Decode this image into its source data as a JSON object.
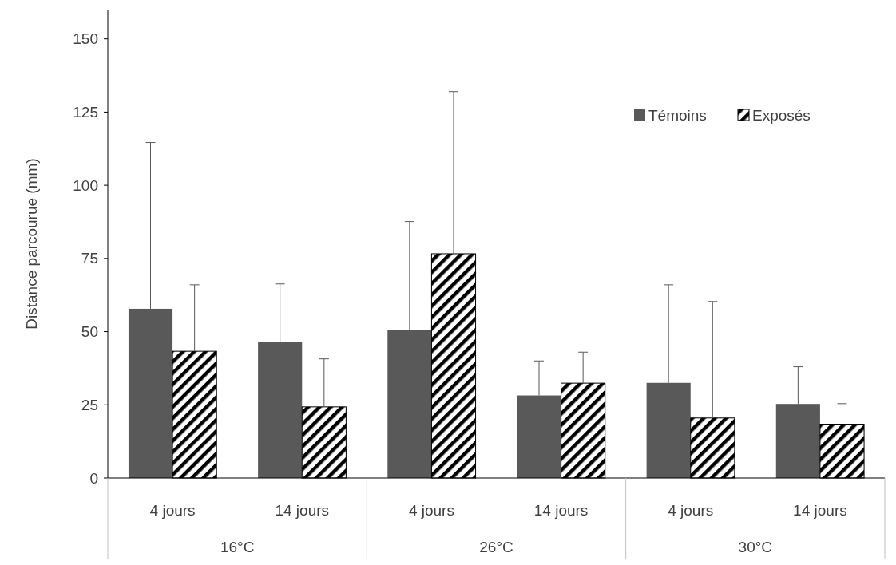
{
  "chart_data": {
    "type": "bar",
    "ylabel": "Distance parcourue (mm)",
    "categories": [
      "4 jours",
      "14 jours",
      "4 jours",
      "14 jours",
      "4 jours",
      "14 jours"
    ],
    "annotations": [
      "16°C",
      "26°C",
      "30°C"
    ],
    "series": [
      {
        "name": "Témoins",
        "color": "#595959",
        "values": [
          57.8,
          46.5,
          50.7,
          28.2,
          32.5,
          25.3
        ],
        "errors": [
          [
            57.8,
            114.6
          ],
          [
            46.5,
            66.3
          ],
          [
            50.7,
            87.6
          ],
          [
            28.2,
            40
          ],
          [
            32.5,
            66
          ],
          [
            25.3,
            38
          ]
        ]
      },
      {
        "name": "Exposés",
        "color": "#000000",
        "values": [
          43.3,
          24.3,
          76.6,
          32.4,
          20.5,
          18.4
        ],
        "errors": [
          [
            43.3,
            66
          ],
          [
            24.3,
            40.7
          ],
          [
            76.6,
            132
          ],
          [
            32.4,
            43
          ],
          [
            20.5,
            60.3
          ],
          [
            18.4,
            25.4
          ]
        ]
      }
    ],
    "ylim": [
      0,
      160
    ],
    "yticks": [
      0,
      25,
      50,
      75,
      100,
      125,
      150
    ],
    "grid": false,
    "legend": "top right"
  }
}
